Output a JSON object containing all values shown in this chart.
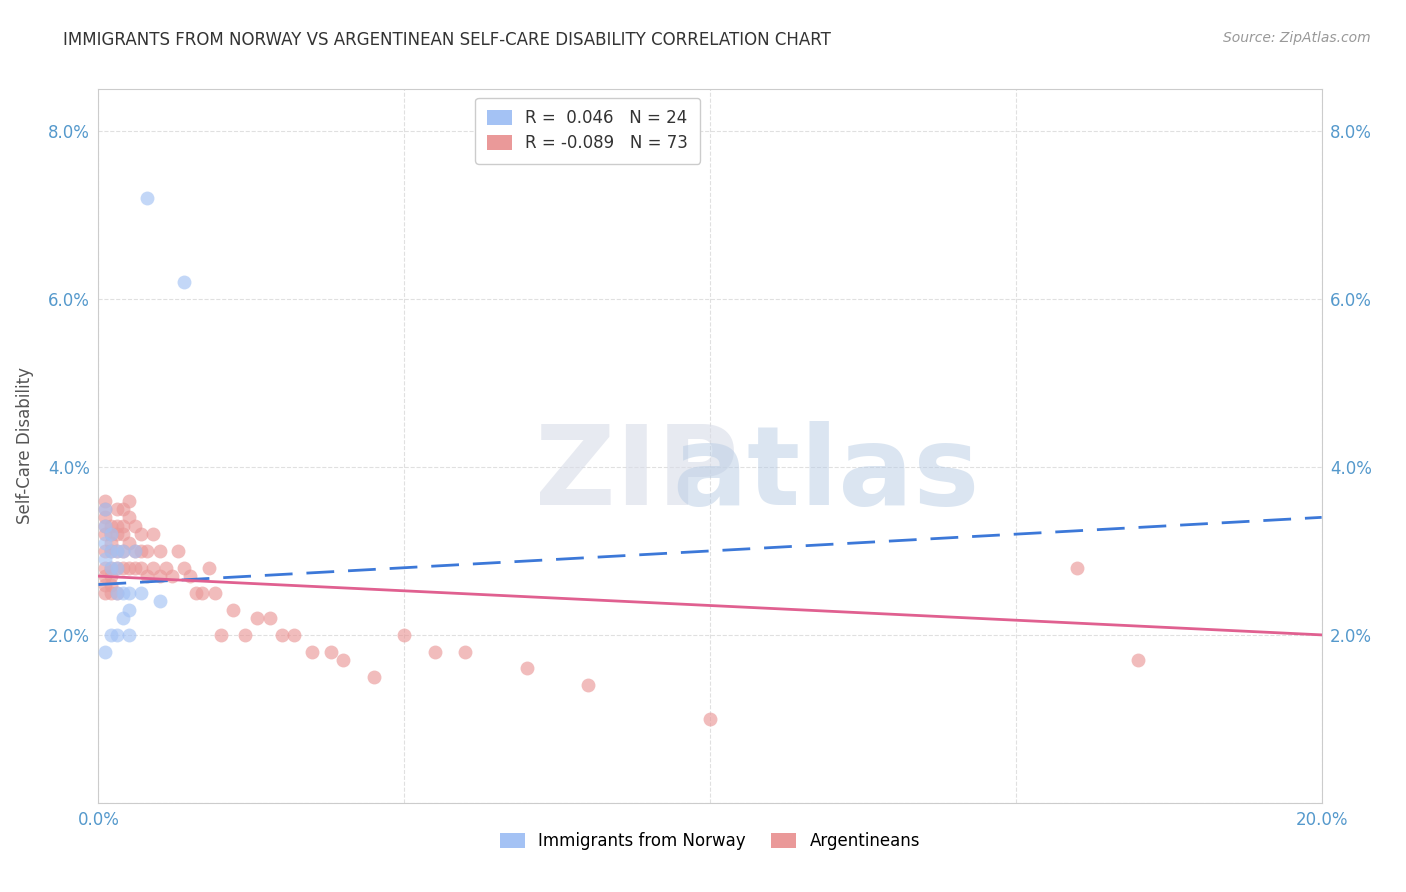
{
  "title": "IMMIGRANTS FROM NORWAY VS ARGENTINEAN SELF-CARE DISABILITY CORRELATION CHART",
  "source": "Source: ZipAtlas.com",
  "ylabel": "Self-Care Disability",
  "xlim": [
    0.0,
    0.2
  ],
  "ylim": [
    0.0,
    0.085
  ],
  "yticks": [
    0.0,
    0.02,
    0.04,
    0.06,
    0.08
  ],
  "ytick_labels": [
    "",
    "2.0%",
    "4.0%",
    "6.0%",
    "8.0%"
  ],
  "xticks": [
    0.0,
    0.05,
    0.1,
    0.15,
    0.2
  ],
  "xtick_labels": [
    "0.0%",
    "",
    "",
    "",
    "20.0%"
  ],
  "legend_r_norway": "0.046",
  "legend_n_norway": "24",
  "legend_r_arg": "-0.089",
  "legend_n_arg": "73",
  "norway_color": "#a4c2f4",
  "arg_color": "#ea9999",
  "norway_line_color": "#3c78d8",
  "arg_line_color": "#e06090",
  "norway_x": [
    0.008,
    0.014,
    0.001,
    0.001,
    0.001,
    0.002,
    0.001,
    0.002,
    0.002,
    0.003,
    0.003,
    0.004,
    0.004,
    0.006,
    0.005,
    0.003,
    0.007,
    0.005,
    0.005,
    0.002,
    0.001,
    0.003,
    0.004,
    0.01
  ],
  "norway_y": [
    0.072,
    0.062,
    0.035,
    0.033,
    0.031,
    0.032,
    0.029,
    0.03,
    0.028,
    0.03,
    0.028,
    0.03,
    0.025,
    0.03,
    0.025,
    0.025,
    0.025,
    0.023,
    0.02,
    0.02,
    0.018,
    0.02,
    0.022,
    0.024
  ],
  "arg_x": [
    0.001,
    0.001,
    0.001,
    0.001,
    0.001,
    0.001,
    0.001,
    0.001,
    0.001,
    0.001,
    0.002,
    0.002,
    0.002,
    0.002,
    0.002,
    0.002,
    0.002,
    0.002,
    0.003,
    0.003,
    0.003,
    0.003,
    0.003,
    0.003,
    0.004,
    0.004,
    0.004,
    0.004,
    0.004,
    0.005,
    0.005,
    0.005,
    0.005,
    0.006,
    0.006,
    0.006,
    0.007,
    0.007,
    0.007,
    0.008,
    0.008,
    0.009,
    0.009,
    0.01,
    0.01,
    0.011,
    0.012,
    0.013,
    0.014,
    0.015,
    0.016,
    0.017,
    0.018,
    0.019,
    0.02,
    0.022,
    0.024,
    0.026,
    0.028,
    0.03,
    0.032,
    0.035,
    0.038,
    0.04,
    0.045,
    0.05,
    0.055,
    0.06,
    0.07,
    0.08,
    0.1,
    0.16,
    0.17
  ],
  "arg_y": [
    0.028,
    0.027,
    0.026,
    0.025,
    0.032,
    0.03,
    0.033,
    0.034,
    0.035,
    0.036,
    0.028,
    0.027,
    0.026,
    0.025,
    0.03,
    0.033,
    0.032,
    0.031,
    0.035,
    0.033,
    0.03,
    0.028,
    0.025,
    0.032,
    0.035,
    0.033,
    0.03,
    0.028,
    0.032,
    0.036,
    0.034,
    0.031,
    0.028,
    0.033,
    0.03,
    0.028,
    0.032,
    0.03,
    0.028,
    0.03,
    0.027,
    0.032,
    0.028,
    0.03,
    0.027,
    0.028,
    0.027,
    0.03,
    0.028,
    0.027,
    0.025,
    0.025,
    0.028,
    0.025,
    0.02,
    0.023,
    0.02,
    0.022,
    0.022,
    0.02,
    0.02,
    0.018,
    0.018,
    0.017,
    0.015,
    0.02,
    0.018,
    0.018,
    0.016,
    0.014,
    0.01,
    0.028,
    0.017
  ],
  "norway_line_x0": 0.0,
  "norway_line_x1": 0.2,
  "norway_line_y0": 0.026,
  "norway_line_y1": 0.034,
  "arg_line_x0": 0.0,
  "arg_line_x1": 0.2,
  "arg_line_y0": 0.027,
  "arg_line_y1": 0.02
}
